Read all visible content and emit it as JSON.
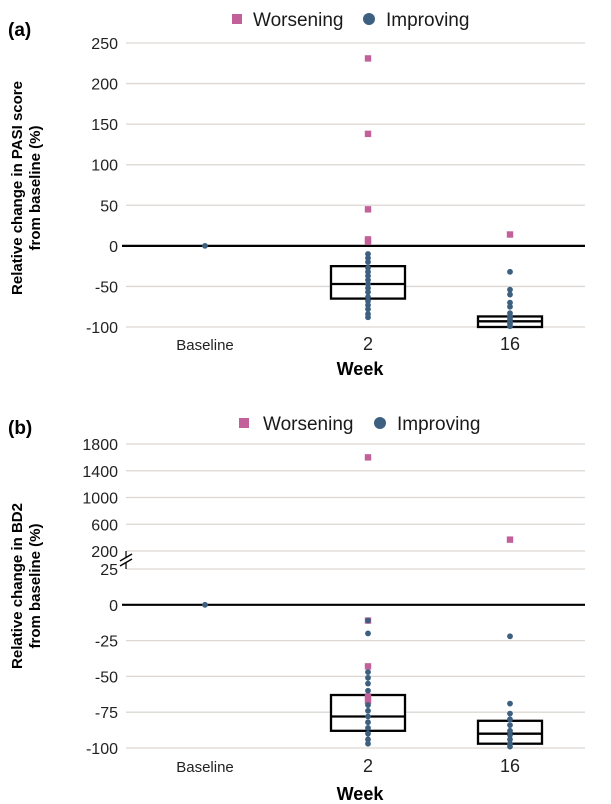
{
  "chart_data": [
    {
      "panel_label": "(a)",
      "type": "scatter",
      "ylabel_lines": [
        "Relative change in PASI score",
        "from baseline (%)"
      ],
      "xlabel": "Week",
      "categories": [
        "Baseline",
        "2",
        "16"
      ],
      "ylim": [
        -100,
        250
      ],
      "yticks": [
        250,
        200,
        150,
        100,
        50,
        0,
        -50,
        -100
      ],
      "grid": true,
      "legend": {
        "placement": "top",
        "entries": [
          {
            "label": "Worsening",
            "color": "#c2609a",
            "marker": "square"
          },
          {
            "label": "Improving",
            "color": "#3d5f80",
            "marker": "circle"
          }
        ]
      },
      "series": [
        {
          "name": "Worsening",
          "color": "#c2609a",
          "points": [
            {
              "x": "2",
              "y": 231
            },
            {
              "x": "2",
              "y": 138
            },
            {
              "x": "2",
              "y": 45
            },
            {
              "x": "2",
              "y": 8
            },
            {
              "x": "2",
              "y": 5
            },
            {
              "x": "16",
              "y": 14
            }
          ]
        },
        {
          "name": "Improving",
          "color": "#3d5f80",
          "points": [
            {
              "x": "Baseline",
              "y": 0
            },
            {
              "x": "2",
              "y": -10
            },
            {
              "x": "2",
              "y": -15
            },
            {
              "x": "2",
              "y": -20
            },
            {
              "x": "2",
              "y": -27
            },
            {
              "x": "2",
              "y": -32
            },
            {
              "x": "2",
              "y": -37
            },
            {
              "x": "2",
              "y": -42
            },
            {
              "x": "2",
              "y": -47
            },
            {
              "x": "2",
              "y": -52
            },
            {
              "x": "2",
              "y": -57
            },
            {
              "x": "2",
              "y": -63
            },
            {
              "x": "2",
              "y": -68
            },
            {
              "x": "2",
              "y": -73
            },
            {
              "x": "2",
              "y": -78
            },
            {
              "x": "2",
              "y": -84
            },
            {
              "x": "2",
              "y": -88
            },
            {
              "x": "16",
              "y": -32
            },
            {
              "x": "16",
              "y": -54
            },
            {
              "x": "16",
              "y": -60
            },
            {
              "x": "16",
              "y": -70
            },
            {
              "x": "16",
              "y": -75
            },
            {
              "x": "16",
              "y": -83
            },
            {
              "x": "16",
              "y": -87
            },
            {
              "x": "16",
              "y": -90
            },
            {
              "x": "16",
              "y": -93
            },
            {
              "x": "16",
              "y": -96
            },
            {
              "x": "16",
              "y": -99
            }
          ]
        }
      ],
      "boxes": [
        {
          "x": "2",
          "q1": -65,
          "median": -47,
          "q3": -25
        },
        {
          "x": "16",
          "q1": -100,
          "median": -93,
          "q3": -87
        }
      ]
    },
    {
      "panel_label": "(b)",
      "type": "scatter",
      "ylabel_lines": [
        "Relative change in BD2",
        "from baseline (%)"
      ],
      "xlabel": "Week",
      "categories": [
        "Baseline",
        "2",
        "16"
      ],
      "axis_break": true,
      "ylim_lower": [
        -100,
        25
      ],
      "yticks_lower": [
        25,
        0,
        -25,
        -50,
        -75,
        -100
      ],
      "ylim_upper": [
        200,
        1800
      ],
      "yticks_upper": [
        1800,
        1400,
        1000,
        600,
        200
      ],
      "grid": true,
      "legend": {
        "placement": "top",
        "entries": [
          {
            "label": "Worsening",
            "color": "#c2609a",
            "marker": "square"
          },
          {
            "label": "Improving",
            "color": "#3d5f80",
            "marker": "circle"
          }
        ]
      },
      "series": [
        {
          "name": "Worsening",
          "color": "#c2609a",
          "points": [
            {
              "x": "2",
              "y": 1600
            },
            {
              "x": "16",
              "y": 370
            },
            {
              "x": "2",
              "y": -11
            },
            {
              "x": "2",
              "y": -43
            },
            {
              "x": "2",
              "y": -64
            },
            {
              "x": "2",
              "y": -67
            }
          ]
        },
        {
          "name": "Improving",
          "color": "#3d5f80",
          "points": [
            {
              "x": "Baseline",
              "y": 0
            },
            {
              "x": "2",
              "y": -11
            },
            {
              "x": "2",
              "y": -20
            },
            {
              "x": "2",
              "y": -47
            },
            {
              "x": "2",
              "y": -51
            },
            {
              "x": "2",
              "y": -55
            },
            {
              "x": "2",
              "y": -60
            },
            {
              "x": "2",
              "y": -70
            },
            {
              "x": "2",
              "y": -74
            },
            {
              "x": "2",
              "y": -78
            },
            {
              "x": "2",
              "y": -82
            },
            {
              "x": "2",
              "y": -86
            },
            {
              "x": "2",
              "y": -90
            },
            {
              "x": "2",
              "y": -94
            },
            {
              "x": "2",
              "y": -97
            },
            {
              "x": "16",
              "y": -22
            },
            {
              "x": "16",
              "y": -69
            },
            {
              "x": "16",
              "y": -76
            },
            {
              "x": "16",
              "y": -80
            },
            {
              "x": "16",
              "y": -84
            },
            {
              "x": "16",
              "y": -88
            },
            {
              "x": "16",
              "y": -91
            },
            {
              "x": "16",
              "y": -94
            },
            {
              "x": "16",
              "y": -97
            },
            {
              "x": "16",
              "y": -99
            }
          ]
        }
      ],
      "boxes": [
        {
          "x": "2",
          "q1": -88,
          "median": -78,
          "q3": -63
        },
        {
          "x": "16",
          "q1": -97,
          "median": -90,
          "q3": -81
        }
      ]
    }
  ]
}
